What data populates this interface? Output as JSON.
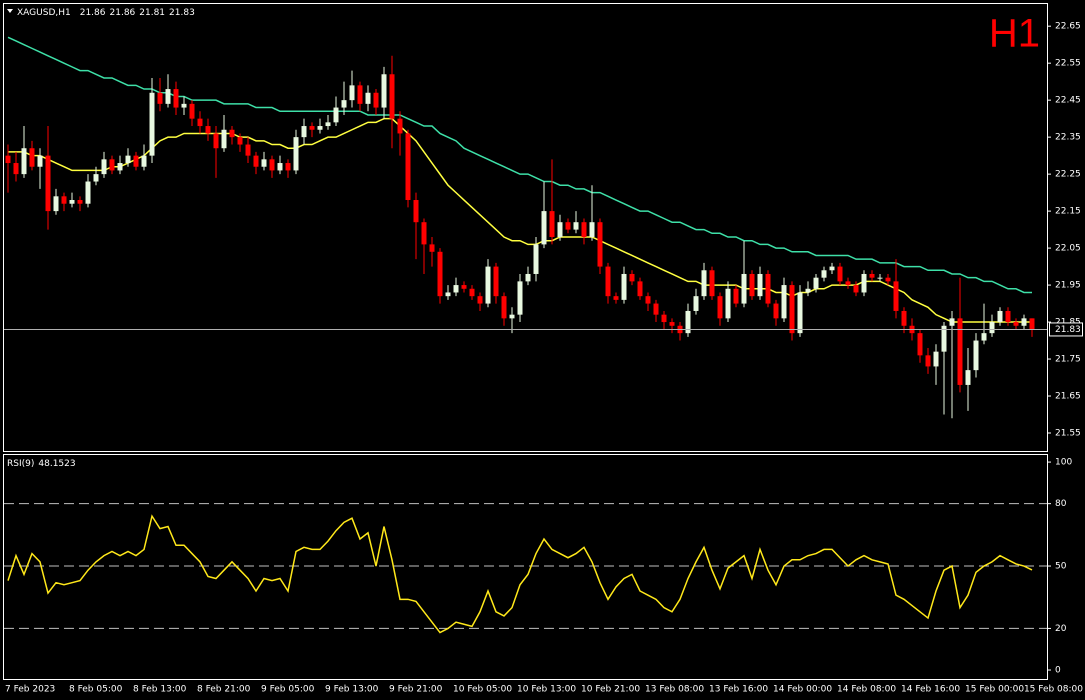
{
  "chart_data": [
    {
      "type": "candlestick",
      "title": "XAGUSD,H1",
      "watermark": "H1",
      "open": [
        22.3,
        22.28,
        22.25,
        22.32,
        22.27,
        22.3,
        22.15,
        22.19,
        22.17,
        22.18,
        22.17,
        22.23,
        22.25,
        22.29,
        22.26,
        22.28,
        22.3,
        22.27,
        22.3,
        22.47,
        22.44,
        22.48,
        22.43,
        22.44,
        22.4,
        22.38,
        22.36,
        22.32,
        22.37,
        22.35,
        22.33,
        22.3,
        22.27,
        22.29,
        22.26,
        22.28,
        22.26,
        22.35,
        22.38,
        22.37,
        22.38,
        22.39,
        22.43,
        22.45,
        22.49,
        22.44,
        22.47,
        22.43,
        22.52,
        22.4,
        22.36,
        22.18,
        22.12,
        22.06,
        22.04,
        21.92,
        21.93,
        21.95,
        21.94,
        21.92,
        21.9,
        22.0,
        21.92,
        21.86,
        21.87,
        21.96,
        21.98,
        22.06,
        22.15,
        22.08,
        22.12,
        22.1,
        22.12,
        22.08,
        22.12,
        22.0,
        21.92,
        21.91,
        21.98,
        21.96,
        21.92,
        21.9,
        21.87,
        21.85,
        21.84,
        21.82,
        21.88,
        21.92,
        21.99,
        21.92,
        21.86,
        21.94,
        21.9,
        21.98,
        21.92,
        21.98,
        21.9,
        21.86,
        21.95,
        21.82,
        21.93,
        21.94,
        21.97,
        21.99,
        22.0,
        21.96,
        21.95,
        21.93,
        21.98,
        21.97,
        21.97,
        21.96,
        21.88,
        21.84,
        21.82,
        21.76,
        21.73,
        21.77,
        21.84,
        21.86,
        21.68,
        21.72,
        21.8,
        21.82,
        21.85,
        21.88,
        21.85,
        21.84,
        21.86
      ],
      "high": [
        22.33,
        22.31,
        22.38,
        22.34,
        22.32,
        22.38,
        22.21,
        22.2,
        22.2,
        22.19,
        22.25,
        22.27,
        22.31,
        22.3,
        22.3,
        22.32,
        22.31,
        22.33,
        22.51,
        22.51,
        22.52,
        22.5,
        22.46,
        22.45,
        22.42,
        22.4,
        22.38,
        22.41,
        22.38,
        22.36,
        22.35,
        22.31,
        22.31,
        22.3,
        22.3,
        22.29,
        22.37,
        22.4,
        22.39,
        22.4,
        22.41,
        22.46,
        22.5,
        22.53,
        22.5,
        22.49,
        22.48,
        22.54,
        22.57,
        22.42,
        22.37,
        22.2,
        22.13,
        22.08,
        22.05,
        21.95,
        21.97,
        21.96,
        21.95,
        21.93,
        22.02,
        22.01,
        21.93,
        21.89,
        21.98,
        22.0,
        22.08,
        22.23,
        22.29,
        22.14,
        22.13,
        22.15,
        22.13,
        22.22,
        22.13,
        22.01,
        21.93,
        22.0,
        21.99,
        21.97,
        21.93,
        21.91,
        21.88,
        21.86,
        21.85,
        21.9,
        21.94,
        22.01,
        22.0,
        21.93,
        21.96,
        21.95,
        22.07,
        21.99,
        22.0,
        21.99,
        21.91,
        21.97,
        21.96,
        21.95,
        21.96,
        21.98,
        22.0,
        22.01,
        22.01,
        21.97,
        21.96,
        21.99,
        21.99,
        21.98,
        21.98,
        22.02,
        21.89,
        21.86,
        21.83,
        21.78,
        21.79,
        21.85,
        21.88,
        21.97,
        21.78,
        21.82,
        21.9,
        21.87,
        21.89,
        21.89,
        21.86,
        21.87,
        21.86
      ],
      "low": [
        22.2,
        22.23,
        22.24,
        22.26,
        22.21,
        22.1,
        22.14,
        22.15,
        22.16,
        22.15,
        22.16,
        22.22,
        22.24,
        22.25,
        22.25,
        22.27,
        22.26,
        22.26,
        22.28,
        22.42,
        22.43,
        22.41,
        22.41,
        22.38,
        22.36,
        22.34,
        22.24,
        22.31,
        22.33,
        22.31,
        22.28,
        22.25,
        22.26,
        22.24,
        22.25,
        22.24,
        22.25,
        22.33,
        22.35,
        22.36,
        22.37,
        22.38,
        22.41,
        22.43,
        22.42,
        22.42,
        22.41,
        22.4,
        22.32,
        22.3,
        22.16,
        22.02,
        21.98,
        22.0,
        21.9,
        21.91,
        21.92,
        21.93,
        21.91,
        21.88,
        21.89,
        21.9,
        21.84,
        21.82,
        21.85,
        21.95,
        21.96,
        22.05,
        22.06,
        22.07,
        22.09,
        22.09,
        22.06,
        22.07,
        21.98,
        21.9,
        21.9,
        21.9,
        21.95,
        21.91,
        21.88,
        21.85,
        21.83,
        21.82,
        21.8,
        21.81,
        21.87,
        21.91,
        21.91,
        21.84,
        21.85,
        21.89,
        21.89,
        21.91,
        21.91,
        21.89,
        21.84,
        21.85,
        21.8,
        21.81,
        21.92,
        21.93,
        21.96,
        21.98,
        21.95,
        21.94,
        21.92,
        21.92,
        21.96,
        21.96,
        21.95,
        21.86,
        21.82,
        21.8,
        21.74,
        21.71,
        21.68,
        21.6,
        21.59,
        21.66,
        21.61,
        21.7,
        21.79,
        21.81,
        21.84,
        21.84,
        21.83,
        21.83,
        21.81
      ],
      "close": [
        22.28,
        22.25,
        22.32,
        22.27,
        22.3,
        22.15,
        22.19,
        22.17,
        22.18,
        22.17,
        22.23,
        22.25,
        22.29,
        22.26,
        22.28,
        22.3,
        22.27,
        22.3,
        22.47,
        22.44,
        22.48,
        22.43,
        22.44,
        22.4,
        22.38,
        22.36,
        22.32,
        22.37,
        22.35,
        22.33,
        22.3,
        22.27,
        22.29,
        22.26,
        22.28,
        22.26,
        22.35,
        22.38,
        22.37,
        22.38,
        22.39,
        22.43,
        22.45,
        22.49,
        22.44,
        22.47,
        22.43,
        22.52,
        22.4,
        22.36,
        22.18,
        22.12,
        22.06,
        22.04,
        21.92,
        21.93,
        21.95,
        21.94,
        21.92,
        21.9,
        22.0,
        21.92,
        21.86,
        21.87,
        21.96,
        21.98,
        22.06,
        22.15,
        22.08,
        22.12,
        22.1,
        22.12,
        22.08,
        22.12,
        22.0,
        21.92,
        21.91,
        21.98,
        21.96,
        21.92,
        21.9,
        21.87,
        21.85,
        21.84,
        21.82,
        21.88,
        21.92,
        21.99,
        21.92,
        21.86,
        21.94,
        21.9,
        21.98,
        21.92,
        21.98,
        21.9,
        21.86,
        21.95,
        21.82,
        21.93,
        21.94,
        21.97,
        21.99,
        22.0,
        21.96,
        21.95,
        21.93,
        21.98,
        21.97,
        21.97,
        21.96,
        21.88,
        21.84,
        21.82,
        21.76,
        21.73,
        21.77,
        21.84,
        21.86,
        21.68,
        21.72,
        21.8,
        21.82,
        21.85,
        21.88,
        21.85,
        21.84,
        21.86,
        21.83
      ],
      "up_color": "#e8f8e0",
      "down_color": "#ff0000",
      "price_line_color": "#b0b0b0",
      "lines": [
        {
          "color": "#3ee0a8",
          "values": [
            22.62,
            22.61,
            22.6,
            22.59,
            22.58,
            22.57,
            22.56,
            22.55,
            22.54,
            22.53,
            22.53,
            22.52,
            22.51,
            22.51,
            22.5,
            22.49,
            22.49,
            22.48,
            22.48,
            22.47,
            22.47,
            22.46,
            22.46,
            22.45,
            22.45,
            22.45,
            22.45,
            22.44,
            22.44,
            22.44,
            22.44,
            22.43,
            22.43,
            22.43,
            22.42,
            22.42,
            22.42,
            22.42,
            22.42,
            22.42,
            22.42,
            22.42,
            22.42,
            22.42,
            22.42,
            22.41,
            22.41,
            22.41,
            22.41,
            22.41,
            22.4,
            22.39,
            22.38,
            22.38,
            22.36,
            22.35,
            22.34,
            22.32,
            22.31,
            22.3,
            22.29,
            22.28,
            22.27,
            22.26,
            22.25,
            22.25,
            22.24,
            22.23,
            22.23,
            22.22,
            22.22,
            22.21,
            22.21,
            22.2,
            22.2,
            22.19,
            22.18,
            22.17,
            22.16,
            22.15,
            22.15,
            22.14,
            22.13,
            22.12,
            22.12,
            22.11,
            22.1,
            22.1,
            22.09,
            22.09,
            22.08,
            22.08,
            22.07,
            22.07,
            22.06,
            22.06,
            22.05,
            22.05,
            22.04,
            22.04,
            22.04,
            22.03,
            22.03,
            22.03,
            22.03,
            22.03,
            22.02,
            22.02,
            22.02,
            22.01,
            22.01,
            22.01,
            22.0,
            22.0,
            22.0,
            21.99,
            21.99,
            21.99,
            21.98,
            21.98,
            21.97,
            21.97,
            21.96,
            21.96,
            21.95,
            21.94,
            21.94,
            21.93,
            21.93
          ]
        },
        {
          "color": "#ffff40",
          "values": [
            22.31,
            22.31,
            22.31,
            22.3,
            22.3,
            22.29,
            22.28,
            22.27,
            22.26,
            22.26,
            22.26,
            22.26,
            22.26,
            22.27,
            22.27,
            22.28,
            22.29,
            22.3,
            22.32,
            22.34,
            22.35,
            22.35,
            22.36,
            22.36,
            22.36,
            22.36,
            22.36,
            22.36,
            22.36,
            22.35,
            22.35,
            22.34,
            22.34,
            22.33,
            22.33,
            22.32,
            22.32,
            22.33,
            22.33,
            22.34,
            22.35,
            22.35,
            22.36,
            22.37,
            22.38,
            22.39,
            22.39,
            22.4,
            22.4,
            22.38,
            22.36,
            22.34,
            22.31,
            22.28,
            22.25,
            22.22,
            22.2,
            22.18,
            22.16,
            22.14,
            22.12,
            22.1,
            22.08,
            22.07,
            22.07,
            22.06,
            22.06,
            22.07,
            22.07,
            22.08,
            22.08,
            22.08,
            22.08,
            22.08,
            22.07,
            22.06,
            22.05,
            22.04,
            22.03,
            22.02,
            22.01,
            22.0,
            21.99,
            21.98,
            21.97,
            21.96,
            21.96,
            21.95,
            21.95,
            21.95,
            21.95,
            21.95,
            21.94,
            21.94,
            21.94,
            21.94,
            21.93,
            21.93,
            21.92,
            21.93,
            21.93,
            21.94,
            21.94,
            21.95,
            21.95,
            21.95,
            21.95,
            21.96,
            21.96,
            21.96,
            21.95,
            21.94,
            21.93,
            21.91,
            21.9,
            21.89,
            21.87,
            21.86,
            21.85,
            21.85,
            21.85,
            21.85,
            21.85,
            21.85,
            21.85,
            21.85,
            21.85,
            21.85,
            21.85
          ]
        }
      ],
      "ylim": [
        21.5,
        22.71
      ],
      "yticks": [
        22.65,
        22.55,
        22.45,
        22.35,
        22.25,
        22.15,
        22.05,
        21.95,
        21.85,
        21.75,
        21.65,
        21.55
      ]
    },
    {
      "type": "line",
      "title": "RSI(9)",
      "categories": [
        "7 Feb 2023",
        null,
        null,
        null,
        null,
        null,
        null,
        null,
        "8 Feb 05:00",
        null,
        null,
        null,
        null,
        null,
        null,
        null,
        "8 Feb 13:00",
        null,
        null,
        null,
        null,
        null,
        null,
        null,
        "8 Feb 21:00",
        null,
        null,
        null,
        null,
        null,
        null,
        null,
        "9 Feb 05:00",
        null,
        null,
        null,
        null,
        null,
        null,
        null,
        "9 Feb 13:00",
        null,
        null,
        null,
        null,
        null,
        null,
        null,
        "9 Feb 21:00",
        null,
        null,
        null,
        null,
        null,
        null,
        null,
        "10 Feb 05:00",
        null,
        null,
        null,
        null,
        null,
        null,
        null,
        "10 Feb 13:00",
        null,
        null,
        null,
        null,
        null,
        null,
        null,
        "10 Feb 21:00",
        null,
        null,
        null,
        null,
        null,
        null,
        null,
        "13 Feb 08:00",
        null,
        null,
        null,
        null,
        null,
        null,
        null,
        "13 Feb 16:00",
        null,
        null,
        null,
        null,
        null,
        null,
        null,
        "14 Feb 00:00",
        null,
        null,
        null,
        null,
        null,
        null,
        null,
        "14 Feb 08:00",
        null,
        null,
        null,
        null,
        null,
        null,
        null,
        "14 Feb 16:00",
        null,
        null,
        null,
        null,
        null,
        null,
        null,
        "15 Feb 00:00",
        null,
        null,
        null,
        null,
        null,
        null,
        null,
        "15 Feb 08:00"
      ],
      "series": [
        {
          "color": "#ffe81a",
          "values": [
            43,
            55,
            46,
            56,
            52,
            37,
            42,
            41,
            42,
            43,
            48,
            52,
            55,
            57,
            55,
            57,
            55,
            58,
            74,
            68,
            69,
            60,
            60,
            56,
            52,
            45,
            44,
            48,
            52,
            48,
            44,
            38,
            44,
            43,
            44,
            38,
            57,
            59,
            58,
            58,
            62,
            67,
            71,
            73,
            63,
            66,
            50,
            69,
            53,
            34,
            34,
            33,
            28,
            23,
            18,
            20,
            23,
            22,
            21,
            28,
            38,
            28,
            26,
            30,
            41,
            46,
            56,
            63,
            58,
            56,
            54,
            56,
            59,
            52,
            42,
            34,
            40,
            44,
            46,
            38,
            36,
            34,
            30,
            28,
            34,
            44,
            52,
            59,
            48,
            39,
            49,
            52,
            55,
            44,
            58,
            48,
            41,
            50,
            53,
            53,
            55,
            56,
            58,
            58,
            54,
            50,
            53,
            55,
            53,
            52,
            51,
            36,
            34,
            31,
            28,
            25,
            38,
            48,
            50,
            30,
            36,
            47,
            50,
            52,
            55,
            53,
            51,
            50,
            48.1523
          ]
        }
      ],
      "levels": [
        80,
        50,
        20
      ],
      "level_color": "#c0c0c0",
      "ylim": [
        -4.8,
        103.4
      ],
      "yticks": [
        100,
        80,
        50,
        20,
        0
      ]
    }
  ]
}
